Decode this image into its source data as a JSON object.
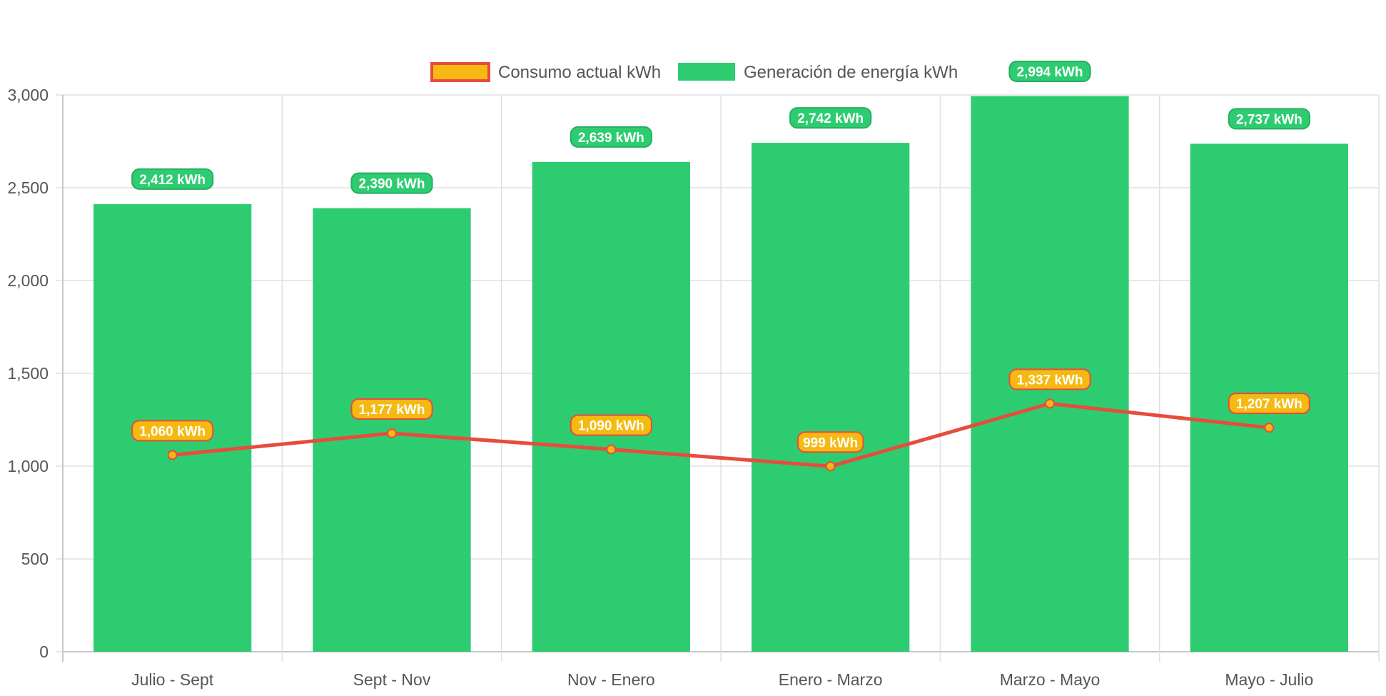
{
  "chart_data": {
    "type": "bar",
    "categories": [
      "Julio - Sept",
      "Sept - Nov",
      "Nov - Enero",
      "Enero - Marzo",
      "Marzo - Mayo",
      "Mayo - Julio"
    ],
    "series": [
      {
        "name": "Consumo actual kWh",
        "kind": "line",
        "values": [
          1060,
          1177,
          1090,
          999,
          1337,
          1207
        ],
        "labels": [
          "1,060 kWh",
          "1,177 kWh",
          "1,090 kWh",
          "999 kWh",
          "1,337 kWh",
          "1,207 kWh"
        ],
        "color": "#e74c3c",
        "fill": "#f5b911"
      },
      {
        "name": "Generación de energía kWh",
        "kind": "bar",
        "values": [
          2412,
          2390,
          2639,
          2742,
          2994,
          2737
        ],
        "labels": [
          "2,412 kWh",
          "2,390 kWh",
          "2,639 kWh",
          "2,742 kWh",
          "2,994 kWh",
          "2,737 kWh"
        ],
        "color": "#2ecc71",
        "label_border": "#27ae60"
      }
    ],
    "ylim": [
      0,
      3000
    ],
    "yticks": [
      0,
      500,
      1000,
      1500,
      2000,
      2500,
      3000
    ],
    "ytick_labels": [
      "0",
      "500",
      "1,000",
      "1,500",
      "2,000",
      "2,500",
      "3,000"
    ],
    "grid": true,
    "legend_position": "top-center",
    "xlabel": "",
    "ylabel": ""
  }
}
